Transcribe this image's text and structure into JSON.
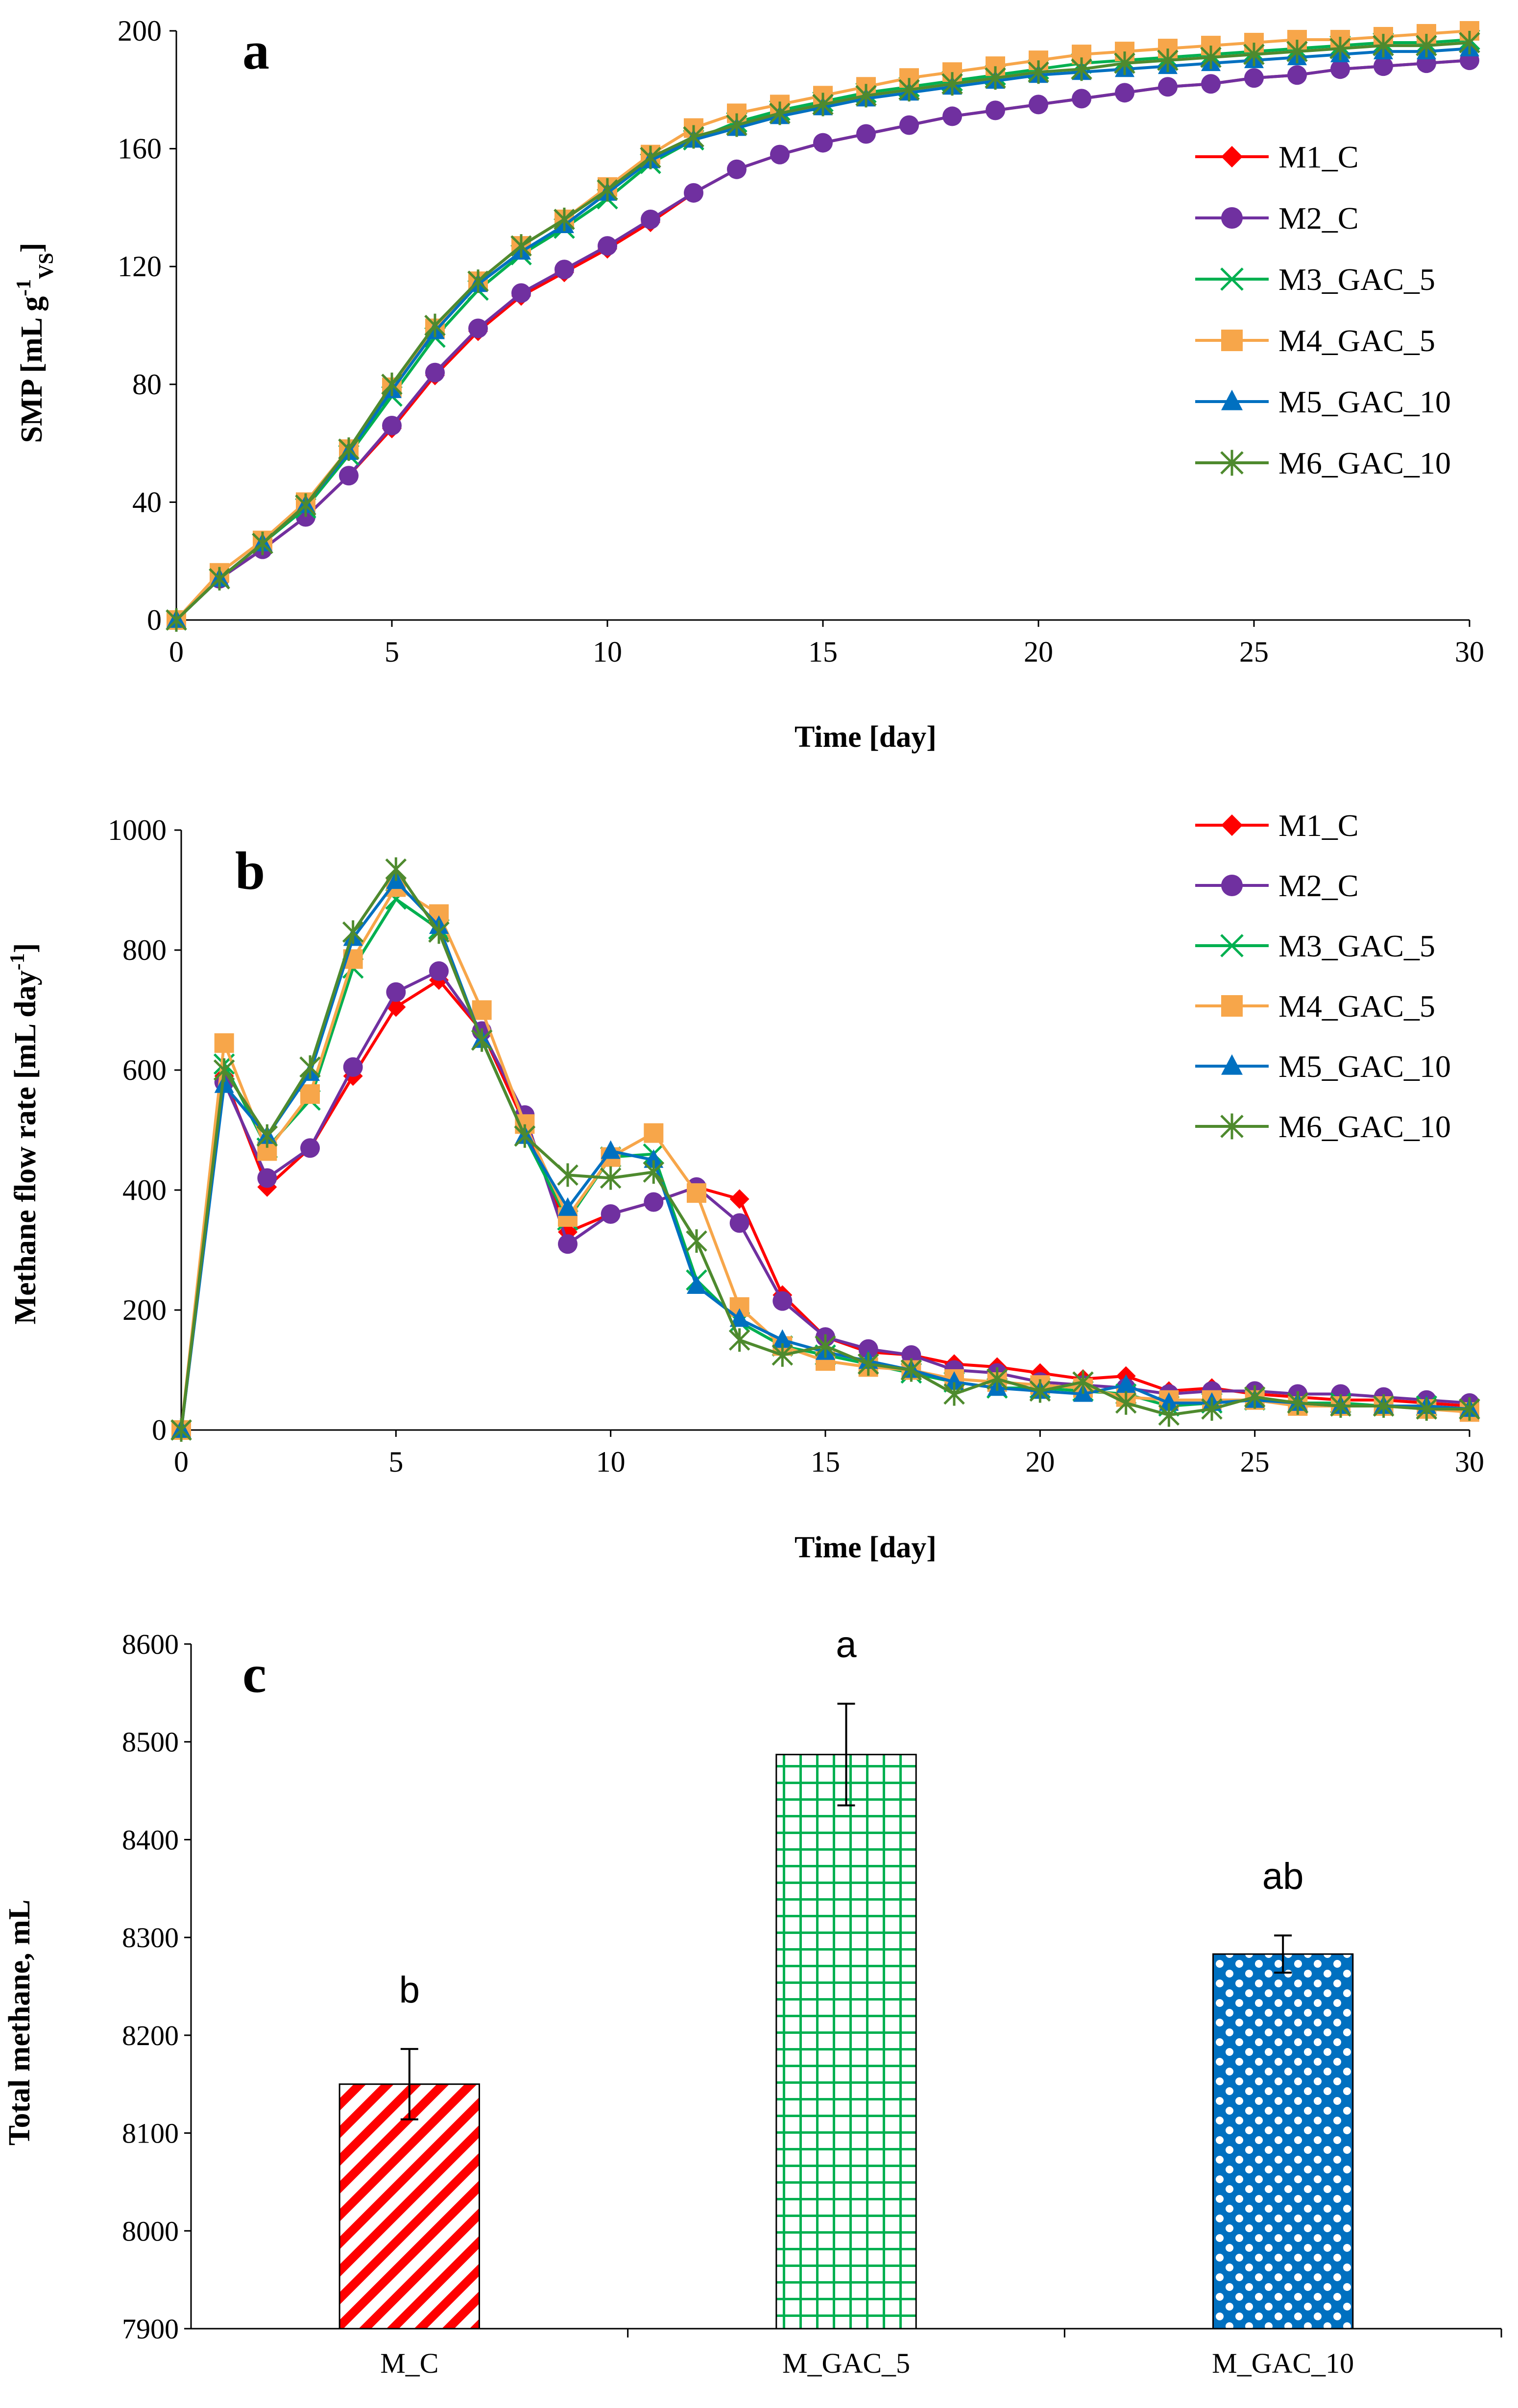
{
  "chart_data": [
    {
      "panel": "a",
      "type": "line",
      "xlabel": "Time [day]",
      "ylabel_main": "SMP [mL g",
      "ylabel_sup": "-1",
      "ylabel_sub": "VS",
      "ylabel_end": "]",
      "xlim": [
        0,
        30
      ],
      "ylim": [
        0,
        200
      ],
      "xticks": [
        0,
        5,
        10,
        15,
        20,
        25,
        30
      ],
      "yticks": [
        0,
        40,
        80,
        120,
        160,
        200
      ],
      "x": [
        0,
        1,
        2,
        3,
        4,
        5,
        6,
        7,
        8,
        9,
        10,
        11,
        12,
        13,
        14,
        15,
        16,
        17,
        18,
        19,
        20,
        21,
        22,
        23,
        24,
        25,
        26,
        27,
        28,
        29,
        30
      ],
      "series": [
        {
          "name": "M1_C",
          "color": "#ff0000",
          "marker": "diamond",
          "values": [
            0,
            14,
            24,
            35,
            49,
            65,
            83,
            98,
            110,
            118,
            126,
            135,
            145,
            153,
            158,
            162,
            165,
            168,
            171,
            173,
            175,
            177,
            179,
            181,
            182,
            184,
            185,
            187,
            188,
            189,
            190
          ]
        },
        {
          "name": "M2_C",
          "color": "#7030a0",
          "marker": "circle",
          "values": [
            0,
            14,
            24,
            35,
            49,
            66,
            84,
            99,
            111,
            119,
            127,
            136,
            145,
            153,
            158,
            162,
            165,
            168,
            171,
            173,
            175,
            177,
            179,
            181,
            182,
            184,
            185,
            187,
            188,
            189,
            190
          ]
        },
        {
          "name": "M3_GAC_5",
          "color": "#00b050",
          "marker": "x",
          "values": [
            0,
            14,
            26,
            38,
            56,
            76,
            96,
            112,
            124,
            133,
            143,
            155,
            163,
            169,
            173,
            176,
            179,
            181,
            183,
            185,
            187,
            189,
            190,
            191,
            192,
            193,
            194,
            195,
            196,
            196,
            197
          ]
        },
        {
          "name": "M4_GAC_5",
          "color": "#f7a64a",
          "marker": "square",
          "values": [
            0,
            16,
            27,
            40,
            58,
            79,
            99,
            115,
            127,
            136,
            147,
            158,
            167,
            172,
            175,
            178,
            181,
            184,
            186,
            188,
            190,
            192,
            193,
            194,
            195,
            196,
            197,
            197,
            198,
            199,
            200
          ]
        },
        {
          "name": "M5_GAC_10",
          "color": "#0070c0",
          "marker": "triangle",
          "values": [
            0,
            14,
            26,
            39,
            57,
            78,
            98,
            114,
            125,
            134,
            145,
            156,
            163,
            167,
            171,
            174,
            177,
            179,
            181,
            183,
            185,
            186,
            187,
            188,
            189,
            190,
            191,
            192,
            193,
            193,
            194
          ]
        },
        {
          "name": "M6_GAC_10",
          "color": "#4e8a2e",
          "marker": "star",
          "values": [
            0,
            14,
            26,
            39,
            58,
            80,
            100,
            115,
            127,
            136,
            146,
            157,
            164,
            168,
            172,
            175,
            178,
            180,
            182,
            184,
            186,
            187,
            189,
            190,
            191,
            192,
            193,
            194,
            195,
            195,
            196
          ]
        }
      ]
    },
    {
      "panel": "b",
      "type": "line",
      "xlabel": "Time [day]",
      "ylabel_main": "Methane flow rate [mL day",
      "ylabel_sup": "-1",
      "ylabel_sub": "",
      "ylabel_end": "]",
      "xlim": [
        0,
        30
      ],
      "ylim": [
        0,
        1000
      ],
      "xticks": [
        0,
        5,
        10,
        15,
        20,
        25,
        30
      ],
      "yticks": [
        0,
        200,
        400,
        600,
        800,
        1000
      ],
      "x": [
        0,
        1,
        2,
        3,
        4,
        5,
        6,
        7,
        8,
        9,
        10,
        11,
        12,
        13,
        14,
        15,
        16,
        17,
        18,
        19,
        20,
        21,
        22,
        23,
        24,
        25,
        26,
        27,
        28,
        29,
        30
      ],
      "series": [
        {
          "name": "M1_C",
          "color": "#ff0000",
          "marker": "diamond",
          "values": [
            0,
            590,
            405,
            470,
            590,
            705,
            750,
            665,
            510,
            330,
            360,
            380,
            405,
            385,
            225,
            155,
            130,
            125,
            110,
            105,
            95,
            85,
            90,
            65,
            70,
            60,
            55,
            50,
            50,
            45,
            40
          ]
        },
        {
          "name": "M2_C",
          "color": "#7030a0",
          "marker": "circle",
          "values": [
            0,
            580,
            420,
            470,
            605,
            730,
            765,
            665,
            525,
            310,
            360,
            380,
            405,
            345,
            215,
            155,
            135,
            125,
            100,
            95,
            80,
            75,
            70,
            60,
            65,
            65,
            60,
            60,
            55,
            50,
            45
          ]
        },
        {
          "name": "M3_GAC_5",
          "color": "#00b050",
          "marker": "x",
          "values": [
            0,
            610,
            470,
            550,
            770,
            885,
            835,
            650,
            490,
            350,
            455,
            460,
            250,
            180,
            140,
            125,
            110,
            95,
            80,
            70,
            70,
            65,
            60,
            40,
            45,
            50,
            45,
            45,
            40,
            40,
            35
          ]
        },
        {
          "name": "M4_GAC_5",
          "color": "#f7a64a",
          "marker": "square",
          "values": [
            0,
            645,
            465,
            560,
            785,
            905,
            860,
            700,
            510,
            355,
            455,
            495,
            395,
            205,
            140,
            115,
            105,
            100,
            85,
            80,
            75,
            70,
            55,
            50,
            50,
            50,
            40,
            40,
            40,
            35,
            30
          ]
        },
        {
          "name": "M5_GAC_10",
          "color": "#0070c0",
          "marker": "triangle",
          "values": [
            0,
            575,
            490,
            595,
            820,
            915,
            840,
            650,
            490,
            370,
            465,
            450,
            240,
            185,
            150,
            130,
            115,
            100,
            80,
            70,
            65,
            60,
            75,
            45,
            45,
            50,
            45,
            40,
            40,
            40,
            35
          ]
        },
        {
          "name": "M6_GAC_10",
          "color": "#4e8a2e",
          "marker": "star",
          "values": [
            0,
            600,
            490,
            605,
            830,
            935,
            830,
            650,
            490,
            425,
            420,
            430,
            315,
            150,
            125,
            140,
            110,
            100,
            60,
            85,
            65,
            80,
            45,
            25,
            35,
            55,
            45,
            40,
            40,
            35,
            35
          ]
        }
      ]
    },
    {
      "panel": "c",
      "type": "bar",
      "ylabel": "Total methane, mL",
      "xlabel": "",
      "categories": [
        "M_C",
        "M_GAC_5",
        "M_GAC_10"
      ],
      "values": [
        8150,
        8487,
        8283
      ],
      "errors": [
        36,
        52,
        19
      ],
      "significance": [
        "b",
        "a",
        "ab"
      ],
      "colors": [
        "#ff0000",
        "#00b050",
        "#0070c0"
      ],
      "patterns": [
        "diagonal",
        "grid",
        "dots"
      ],
      "ylim": [
        7900,
        8600
      ],
      "yticks": [
        7900,
        8000,
        8100,
        8200,
        8300,
        8400,
        8500,
        8600
      ]
    }
  ]
}
